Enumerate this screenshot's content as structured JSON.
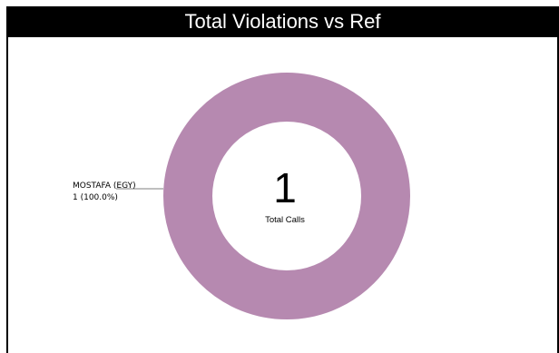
{
  "header": {
    "title": "Total Violations vs Ref"
  },
  "chart_data": {
    "type": "pie",
    "title": "Total Violations vs Ref",
    "hole": true,
    "center_value": "1",
    "center_caption": "Total Calls",
    "series": [
      {
        "name": "MOSTAFA (EGY)",
        "value": 1,
        "percent_label": "1 (100.0%)",
        "color": "#b689b0"
      }
    ],
    "legend": "none"
  }
}
